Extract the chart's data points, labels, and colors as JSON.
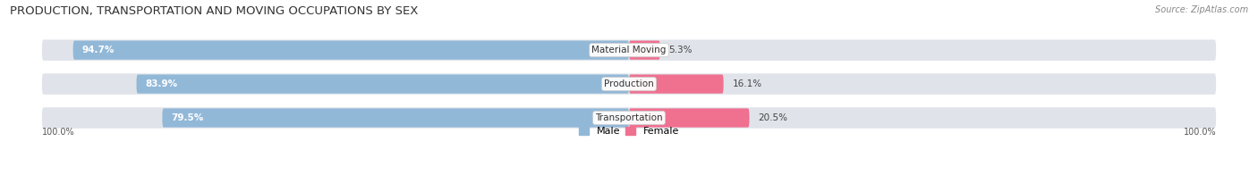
{
  "title": "PRODUCTION, TRANSPORTATION AND MOVING OCCUPATIONS BY SEX",
  "source": "Source: ZipAtlas.com",
  "categories": [
    "Material Moving",
    "Production",
    "Transportation"
  ],
  "male_values": [
    94.7,
    83.9,
    79.5
  ],
  "female_values": [
    5.3,
    16.1,
    20.5
  ],
  "male_color": "#92b8d8",
  "female_color": "#f07090",
  "bar_bg_color": "#e0e4ea",
  "male_label": "Male",
  "female_label": "Female",
  "left_axis_label": "100.0%",
  "right_axis_label": "100.0%",
  "title_fontsize": 9.5,
  "bar_label_fontsize": 7.5,
  "category_fontsize": 7.5,
  "source_fontsize": 7
}
